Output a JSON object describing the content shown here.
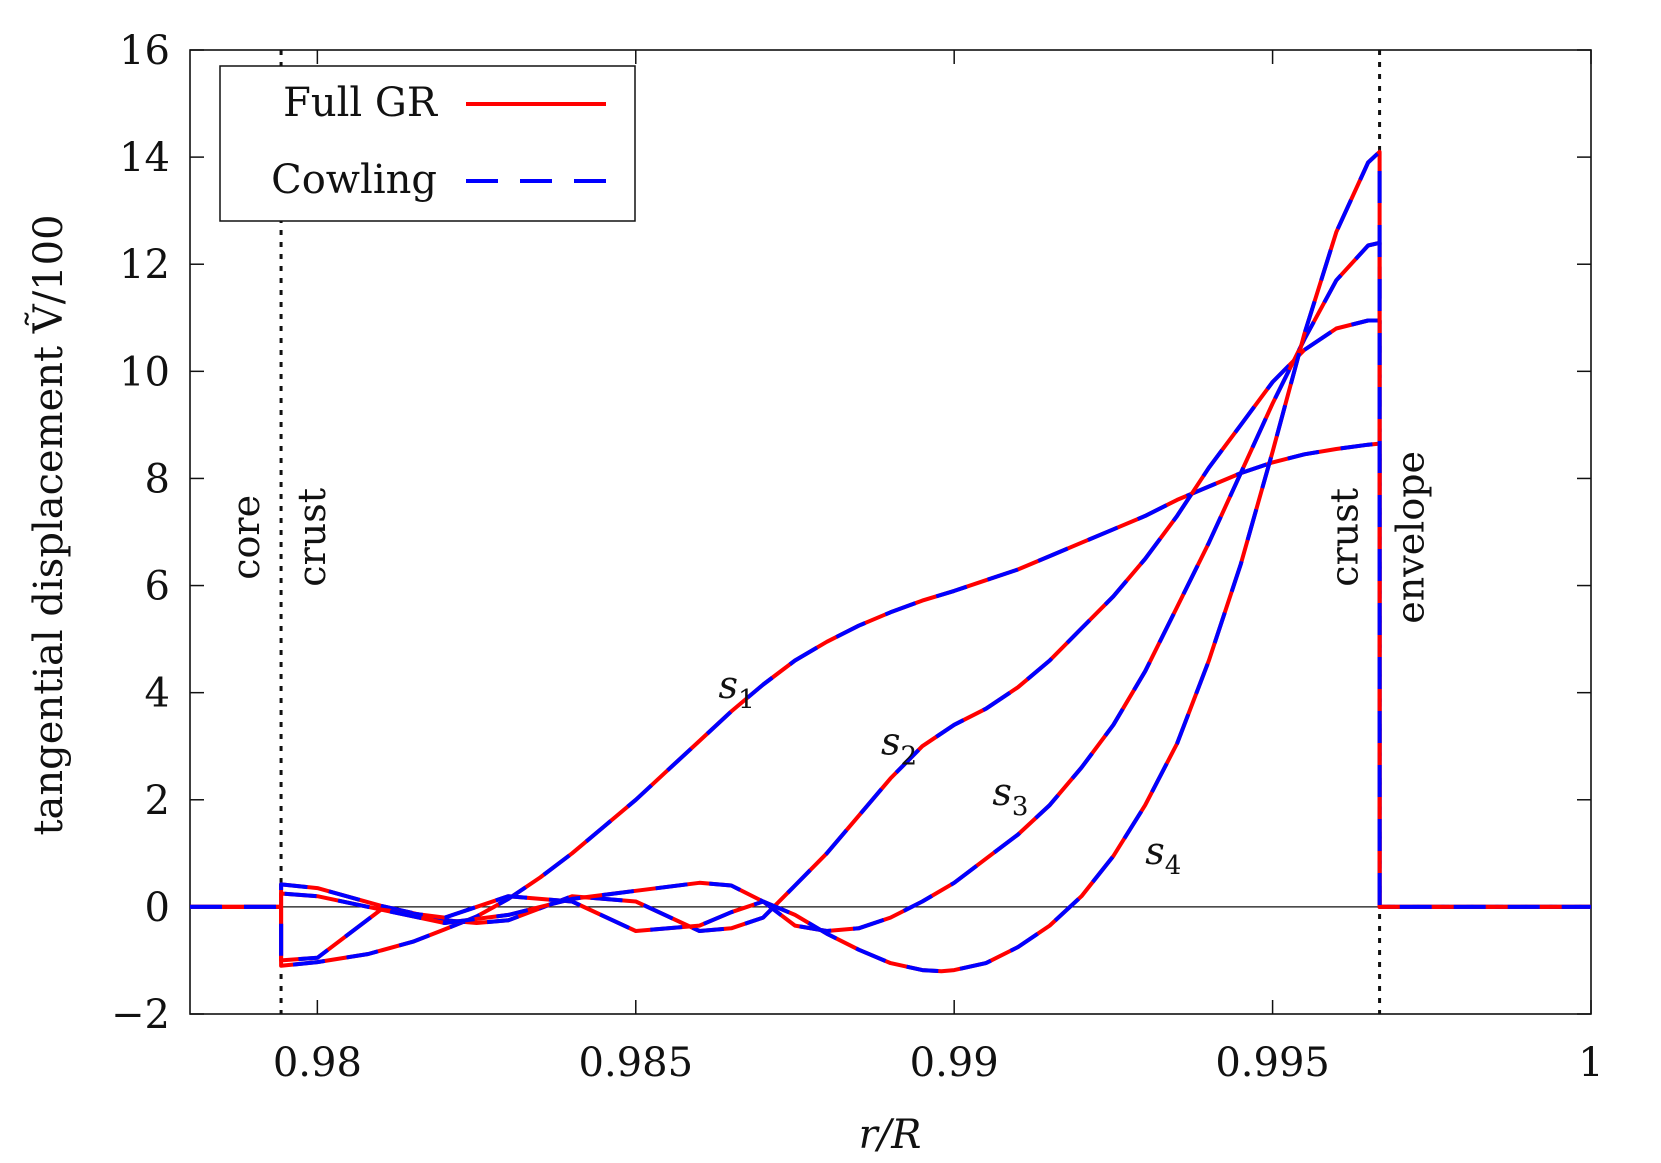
{
  "chart_data": {
    "type": "line",
    "xlabel": "r/R",
    "ylabel": "tangential displacement Ṽ/100",
    "xlim": [
      0.978,
      1.0
    ],
    "ylim": [
      -2,
      16
    ],
    "xticks": [
      0.98,
      0.985,
      0.99,
      0.995,
      1.0
    ],
    "xtick_labels": [
      "0.98",
      "0.985",
      "0.99",
      "0.995",
      "1"
    ],
    "yticks": [
      -2,
      0,
      2,
      4,
      6,
      8,
      10,
      12,
      14,
      16
    ],
    "ytick_labels": [
      "−2",
      "0",
      "2",
      "4",
      "6",
      "8",
      "10",
      "12",
      "14",
      "16"
    ],
    "grid": false,
    "legend": {
      "position": "top-left",
      "entries": [
        {
          "label": "Full GR",
          "color": "#ff0000",
          "style": "solid"
        },
        {
          "label": "Cowling",
          "color": "#0000ff",
          "style": "dashed"
        }
      ]
    },
    "boundaries": [
      {
        "x": 0.97943,
        "style": "dotted",
        "left_label": "core",
        "right_label": "crust"
      },
      {
        "x": 0.99668,
        "style": "dotted",
        "left_label": "crust",
        "right_label": "envelope"
      }
    ],
    "series": [
      {
        "name": "s1",
        "label_main": "s",
        "label_sub": "1",
        "label_at": [
          0.9863,
          3.9
        ],
        "x": [
          0.978,
          0.97943,
          0.97943,
          0.98,
          0.9808,
          0.9815,
          0.982,
          0.9825,
          0.983,
          0.9835,
          0.984,
          0.9845,
          0.985,
          0.9855,
          0.986,
          0.9865,
          0.987,
          0.9875,
          0.988,
          0.9885,
          0.989,
          0.9895,
          0.99,
          0.9905,
          0.991,
          0.9915,
          0.992,
          0.9925,
          0.993,
          0.9935,
          0.994,
          0.9945,
          0.995,
          0.9955,
          0.996,
          0.9965,
          0.99668,
          0.99668,
          1.0
        ],
        "y": [
          0,
          0,
          -1.1,
          -1.03,
          -0.88,
          -0.65,
          -0.42,
          -0.18,
          0.15,
          0.55,
          1.0,
          1.5,
          2.0,
          2.55,
          3.1,
          3.65,
          4.15,
          4.6,
          4.95,
          5.25,
          5.5,
          5.72,
          5.9,
          6.1,
          6.3,
          6.55,
          6.8,
          7.05,
          7.3,
          7.6,
          7.85,
          8.1,
          8.3,
          8.45,
          8.55,
          8.63,
          8.65,
          0,
          0
        ]
      },
      {
        "name": "s2",
        "label_main": "s",
        "label_sub": "2",
        "label_at": [
          0.98885,
          2.85
        ],
        "x": [
          0.978,
          0.97943,
          0.97943,
          0.98,
          0.981,
          0.982,
          0.9825,
          0.983,
          0.984,
          0.985,
          0.986,
          0.9865,
          0.987,
          0.9875,
          0.988,
          0.9885,
          0.989,
          0.9895,
          0.99,
          0.9905,
          0.991,
          0.9915,
          0.992,
          0.9925,
          0.993,
          0.9935,
          0.994,
          0.9945,
          0.995,
          0.9955,
          0.996,
          0.9965,
          0.99668,
          0.99668,
          1.0
        ],
        "y": [
          0,
          0,
          0.42,
          0.35,
          0.02,
          -0.25,
          -0.3,
          -0.25,
          0.2,
          0.1,
          -0.45,
          -0.4,
          -0.2,
          0.4,
          1.0,
          1.7,
          2.4,
          3.0,
          3.4,
          3.7,
          4.1,
          4.6,
          5.2,
          5.8,
          6.5,
          7.3,
          8.2,
          9.0,
          9.8,
          10.4,
          10.8,
          10.95,
          10.95,
          0,
          0
        ]
      },
      {
        "name": "s3",
        "label_main": "s",
        "label_sub": "3",
        "label_at": [
          0.9906,
          1.9
        ],
        "x": [
          0.978,
          0.97943,
          0.97943,
          0.98,
          0.981,
          0.982,
          0.983,
          0.984,
          0.985,
          0.986,
          0.9865,
          0.987,
          0.9875,
          0.988,
          0.9885,
          0.989,
          0.9895,
          0.99,
          0.9905,
          0.991,
          0.9915,
          0.992,
          0.9925,
          0.993,
          0.9935,
          0.994,
          0.9945,
          0.995,
          0.9955,
          0.996,
          0.9965,
          0.99668,
          0.99668,
          1.0
        ],
        "y": [
          0,
          0,
          0.25,
          0.2,
          -0.05,
          -0.2,
          0.2,
          0.1,
          -0.45,
          -0.35,
          -0.1,
          0.1,
          -0.35,
          -0.45,
          -0.4,
          -0.2,
          0.1,
          0.45,
          0.9,
          1.35,
          1.9,
          2.6,
          3.4,
          4.4,
          5.6,
          6.8,
          8.1,
          9.4,
          10.6,
          11.7,
          12.35,
          12.4,
          0,
          0
        ]
      },
      {
        "name": "s4",
        "label_main": "s",
        "label_sub": "4",
        "label_at": [
          0.993,
          0.8
        ],
        "x": [
          0.978,
          0.97943,
          0.97943,
          0.98,
          0.981,
          0.982,
          0.983,
          0.984,
          0.985,
          0.986,
          0.9865,
          0.987,
          0.9875,
          0.988,
          0.9885,
          0.989,
          0.9895,
          0.9898,
          0.99,
          0.9905,
          0.991,
          0.9915,
          0.992,
          0.9925,
          0.993,
          0.9935,
          0.994,
          0.9945,
          0.995,
          0.9955,
          0.996,
          0.9965,
          0.99668,
          0.99668,
          1.0
        ],
        "y": [
          0,
          0,
          -1.0,
          -0.95,
          -0.05,
          -0.3,
          -0.15,
          0.15,
          0.3,
          0.45,
          0.4,
          0.1,
          -0.15,
          -0.5,
          -0.8,
          -1.05,
          -1.18,
          -1.2,
          -1.18,
          -1.05,
          -0.75,
          -0.35,
          0.2,
          0.95,
          1.9,
          3.05,
          4.6,
          6.4,
          8.5,
          10.7,
          12.6,
          13.9,
          14.1,
          0,
          0
        ]
      }
    ]
  }
}
